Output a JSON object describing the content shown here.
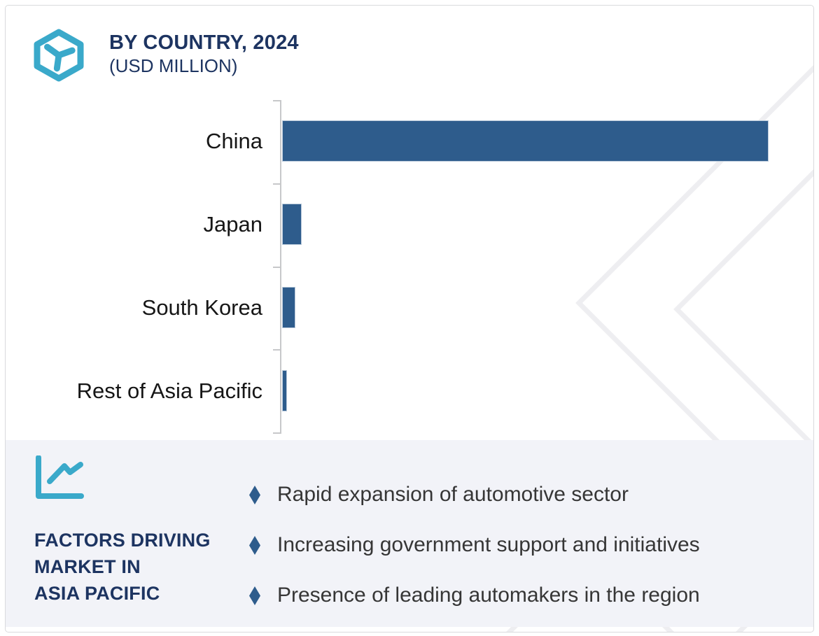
{
  "header": {
    "title": "BY COUNTRY, 2024",
    "subtitle": "(USD MILLION)"
  },
  "chart_data": {
    "type": "bar",
    "orientation": "horizontal",
    "title": "BY COUNTRY, 2024",
    "subtitle": "(USD MILLION)",
    "unit": "USD Million",
    "categories": [
      "China",
      "Japan",
      "South Korea",
      "Rest of Asia Pacific"
    ],
    "values_pct_of_max": [
      100,
      4,
      2.8,
      1
    ],
    "value_axis_labels_visible": false,
    "data_labels_visible": false,
    "gridlines": false,
    "legend": "none",
    "bar_color": "#2e5c8c"
  },
  "factors_panel": {
    "icon": "line-chart-icon",
    "heading_lines": [
      "FACTORS DRIVING",
      "MARKET IN",
      "ASIA PACIFIC"
    ],
    "bullets": [
      "Rapid expansion of automotive sector",
      "Increasing government support and initiatives",
      "Presence of leading automakers in the region"
    ],
    "bullet_marker": "diamond"
  },
  "colors": {
    "navy": "#1d3461",
    "teal": "#3aa9ca",
    "bar_blue": "#2e5c8c",
    "bar_border": "#b9c9da",
    "panel_bg": "#f2f3f8",
    "text_dark": "#363636",
    "label_black": "#161616",
    "axis_gray": "#c7c8ca",
    "watermark_gray": "#eeeef1",
    "card_border": "#d9dadd"
  }
}
